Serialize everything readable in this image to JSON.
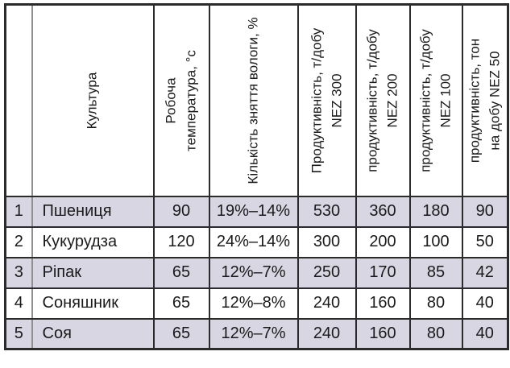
{
  "colors": {
    "row_shaded": "#d9d6e3",
    "row_plain": "#ffffff",
    "border_dark": "#2b2b2b",
    "border_light": "#8f8f8f",
    "text": "#1a1a1a"
  },
  "chart_data": {
    "type": "table",
    "title": "",
    "columns": [
      "",
      "Культура",
      "Робоча температура, °с",
      "Кількість зняття вологи, %",
      "Продуктивність, т/добу NEZ 300",
      "продуктивність, т/добу NEZ 200",
      "продуктивність, т/добу NEZ 100",
      "продуктивність, тон на добу NEZ 50"
    ],
    "rows": [
      [
        "1",
        "Пшениця",
        90,
        "19%–14%",
        530,
        360,
        180,
        90
      ],
      [
        "2",
        "Кукурудза",
        120,
        "24%–14%",
        300,
        200,
        100,
        50
      ],
      [
        "3",
        "Ріпак",
        65,
        "12%–7%",
        250,
        170,
        85,
        42
      ],
      [
        "4",
        "Соняшник",
        65,
        "12%–8%",
        240,
        160,
        80,
        40
      ],
      [
        "5",
        "Соя",
        65,
        "12%–7%",
        240,
        160,
        80,
        40
      ]
    ]
  },
  "table": {
    "headers": [
      {
        "line1": "",
        "line2": ""
      },
      {
        "line1": "Культура",
        "line2": ""
      },
      {
        "line1": "Робоча",
        "line2": "температура, °с"
      },
      {
        "line1": "Кількість зняття вологи, %",
        "line2": ""
      },
      {
        "line1": "Продуктивність, т/добу",
        "line2": "NEZ 300"
      },
      {
        "line1": "продуктивність, т/добу",
        "line2": "NEZ 200"
      },
      {
        "line1": "продуктивність, т/добу",
        "line2": "NEZ 100"
      },
      {
        "line1": "продуктивність, тон",
        "line2": "на добу NEZ 50"
      }
    ],
    "rows": [
      [
        "1",
        "Пшениця",
        "90",
        "19%–14%",
        "530",
        "360",
        "180",
        "90"
      ],
      [
        "2",
        "Кукурудза",
        "120",
        "24%–14%",
        "300",
        "200",
        "100",
        "50"
      ],
      [
        "3",
        "Ріпак",
        "65",
        "12%–7%",
        "250",
        "170",
        "85",
        "42"
      ],
      [
        "4",
        "Соняшник",
        "65",
        "12%–8%",
        "240",
        "160",
        "80",
        "40"
      ],
      [
        "5",
        "Соя",
        "65",
        "12%–7%",
        "240",
        "160",
        "80",
        "40"
      ]
    ]
  }
}
